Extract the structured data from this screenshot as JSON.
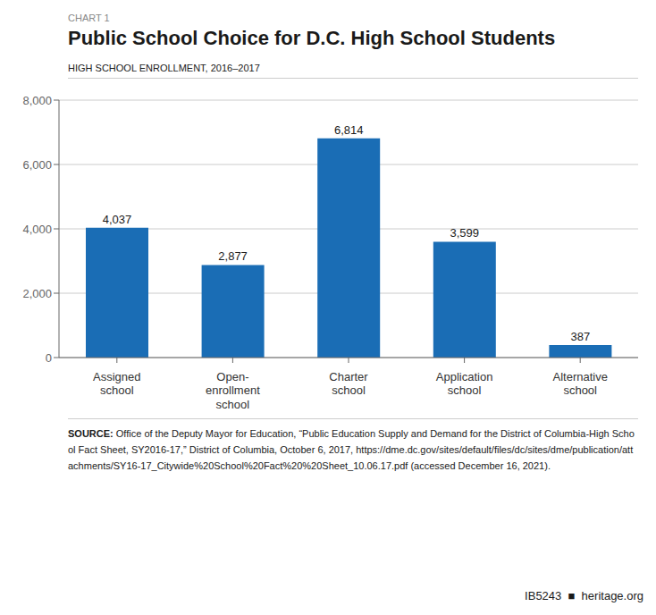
{
  "chart_data": {
    "type": "bar",
    "title": "Public School Choice for D.C. High School Students",
    "subtitle": "HIGH SCHOOL ENROLLMENT, 2016–2017",
    "annotations": [
      "CHART 1",
      "SOURCE:",
      "Office of the Deputy Mayor for Education, “Public Education Supply and Demand for the District of Columbia-High School Fact Sheet, SY2016-17,” District of Columbia, October 6, 2017, https://dme.dc.gov/sites/default/files/dc/sites/dme/publication/attachments/SY16-17_Citywide%20School%20Fact%20%20Sheet_10.06.17.pdf (accessed December 16, 2021).",
      "IB5243  ■  heritage.org"
    ],
    "categories": [
      "Assigned\nschool",
      "Open-\nenrollment\nschool",
      "Charter\nschool",
      "Application\nschool",
      "Alternative\nschool"
    ],
    "values": [
      4037,
      2877,
      6814,
      3599,
      387
    ],
    "value_labels": [
      "4,037",
      "2,877",
      "6,814",
      "3,599",
      "387"
    ],
    "data_labels": true,
    "color": "#1A6DB5",
    "ylim": [
      0,
      8000
    ],
    "yticks": [
      0,
      {
        "value": 2000,
        "label": "2,000"
      },
      {
        "value": 4000,
        "label": "4,000"
      },
      {
        "value": 6000,
        "label": "6,000"
      },
      {
        "value": 8000,
        "label": "8,000"
      }
    ],
    "grid": true
  }
}
